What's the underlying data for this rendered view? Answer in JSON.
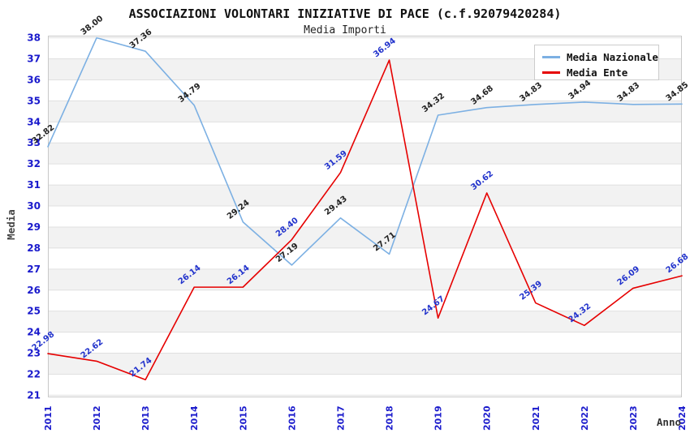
{
  "chart_data": {
    "type": "line",
    "title": "ASSOCIAZIONI VOLONTARI INIZIATIVE DI PACE (c.f.92079420284)",
    "subtitle": "Media Importi",
    "xlabel": "Anno",
    "ylabel": "Media",
    "categories": [
      "2011",
      "2012",
      "2013",
      "2014",
      "2015",
      "2016",
      "2017",
      "2018",
      "2019",
      "2020",
      "2021",
      "2022",
      "2023",
      "2024"
    ],
    "series": [
      {
        "name": "Media Nazionale",
        "color": "#7CB0E3",
        "label_color": "#222222",
        "values": [
          32.82,
          38.0,
          37.36,
          34.79,
          29.24,
          27.19,
          29.43,
          27.71,
          34.32,
          34.68,
          34.83,
          34.94,
          34.83,
          34.85
        ]
      },
      {
        "name": "Media Ente",
        "color": "#E60000",
        "label_color": "#2233CC",
        "values": [
          22.98,
          22.62,
          21.74,
          26.14,
          26.14,
          28.4,
          31.59,
          36.94,
          24.67,
          30.62,
          25.39,
          24.32,
          26.09,
          26.68
        ]
      }
    ],
    "ylim": [
      21,
      38
    ],
    "ytick_step": 1,
    "grid": "horizontal",
    "banded_rows": true,
    "point_labels": "all, rotated, two decimals",
    "legend_position": "top-right",
    "colors": {
      "tick_label": "#1A1ACC",
      "band": "#F2F2F2",
      "gridline": "#E0E0E0",
      "plot_border": "#C8C8C8",
      "title": "#111111",
      "subtitle": "#222222",
      "axis_title": "#444444",
      "legend_bg": "#FFFFFF",
      "legend_border": "#CCCCCC"
    }
  }
}
